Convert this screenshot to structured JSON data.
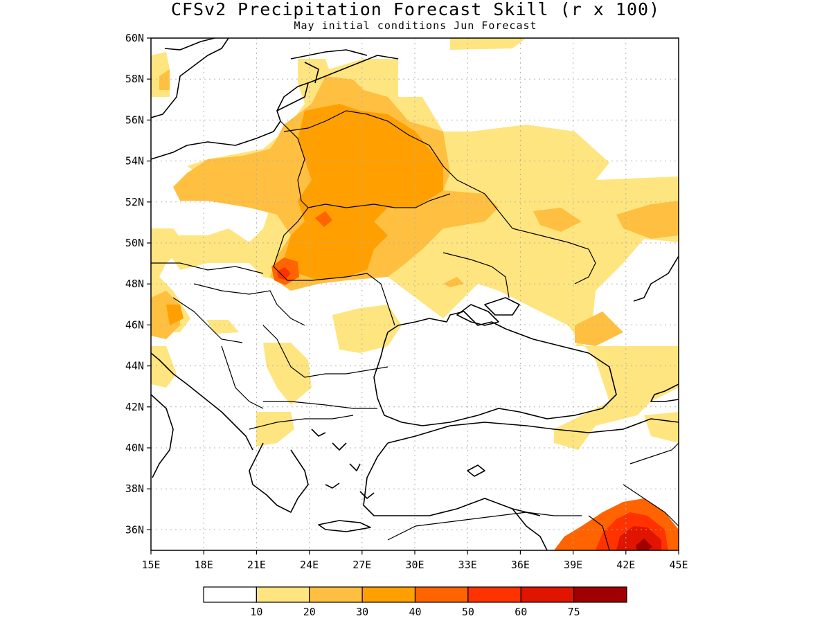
{
  "title": "CFSv2 Precipitation Forecast Skill (r x 100)",
  "subtitle": "May initial conditions  Jun Forecast",
  "map": {
    "region": "Eastern Europe, Balkans, Black Sea, Turkey",
    "lon_range": [
      15,
      45
    ],
    "lat_range": [
      35,
      60
    ],
    "x_ticks": [
      "15E",
      "18E",
      "21E",
      "24E",
      "27E",
      "30E",
      "33E",
      "36E",
      "39E",
      "42E",
      "45E"
    ],
    "y_ticks": [
      "36N",
      "38N",
      "40N",
      "42N",
      "44N",
      "46N",
      "48N",
      "50N",
      "52N",
      "54N",
      "56N",
      "58N",
      "60N"
    ],
    "gridlines": "dotted",
    "highest_skill_region": "southeastern Turkey / northern Iraq near 42-43E, 36-37N",
    "colorbar": {
      "labels": [
        "10",
        "20",
        "30",
        "40",
        "50",
        "60",
        "75"
      ],
      "colors": [
        "#ffffff",
        "#ffe57f",
        "#ffbf40",
        "#ffa000",
        "#ff6400",
        "#ff3200",
        "#e11400",
        "#a00000"
      ]
    }
  }
}
